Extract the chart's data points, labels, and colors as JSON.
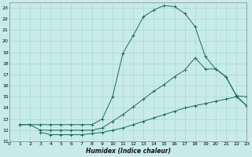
{
  "bg_color": "#c8ebe8",
  "grid_color": "#a8d8d4",
  "line_color": "#1a6b5a",
  "xlabel": "Humidex (Indice chaleur)",
  "xlim": [
    0,
    23
  ],
  "ylim": [
    11,
    23.5
  ],
  "yticks": [
    11,
    12,
    13,
    14,
    15,
    16,
    17,
    18,
    19,
    20,
    21,
    22,
    23
  ],
  "xticks": [
    0,
    1,
    2,
    3,
    4,
    5,
    6,
    7,
    8,
    9,
    10,
    11,
    12,
    13,
    14,
    15,
    16,
    17,
    18,
    19,
    20,
    21,
    22,
    23
  ],
  "curve1_x": [
    1,
    2,
    3,
    4,
    5,
    6,
    7,
    8,
    9,
    10,
    11,
    12,
    13,
    14,
    15,
    16,
    17,
    18,
    19,
    20,
    21,
    22,
    23
  ],
  "curve1_y": [
    12.5,
    12.5,
    12.5,
    12.5,
    12.5,
    12.5,
    12.5,
    12.5,
    13.0,
    15.0,
    18.9,
    20.5,
    22.2,
    22.8,
    23.2,
    23.1,
    22.5,
    21.3,
    18.6,
    17.5,
    16.8,
    15.1,
    14.2
  ],
  "curve2_x": [
    1,
    2,
    3,
    4,
    5,
    6,
    7,
    8,
    9,
    10,
    11,
    12,
    13,
    14,
    15,
    16,
    17,
    18,
    19,
    20,
    21,
    22,
    23
  ],
  "curve2_y": [
    12.5,
    12.5,
    12.0,
    12.0,
    12.0,
    12.0,
    12.0,
    12.0,
    12.2,
    12.8,
    13.4,
    14.1,
    14.8,
    15.5,
    16.1,
    16.8,
    17.4,
    18.5,
    17.5,
    17.5,
    16.8,
    15.1,
    15.0
  ],
  "curve3_x": [
    3,
    4,
    5,
    6,
    7,
    8,
    9,
    10,
    11,
    12,
    13,
    14,
    15,
    16,
    17,
    18,
    19,
    20,
    21,
    22,
    23
  ],
  "curve3_y": [
    11.8,
    11.6,
    11.6,
    11.6,
    11.6,
    11.7,
    11.8,
    12.0,
    12.2,
    12.5,
    12.8,
    13.1,
    13.4,
    13.7,
    14.0,
    14.2,
    14.4,
    14.6,
    14.8,
    15.0,
    14.2
  ]
}
